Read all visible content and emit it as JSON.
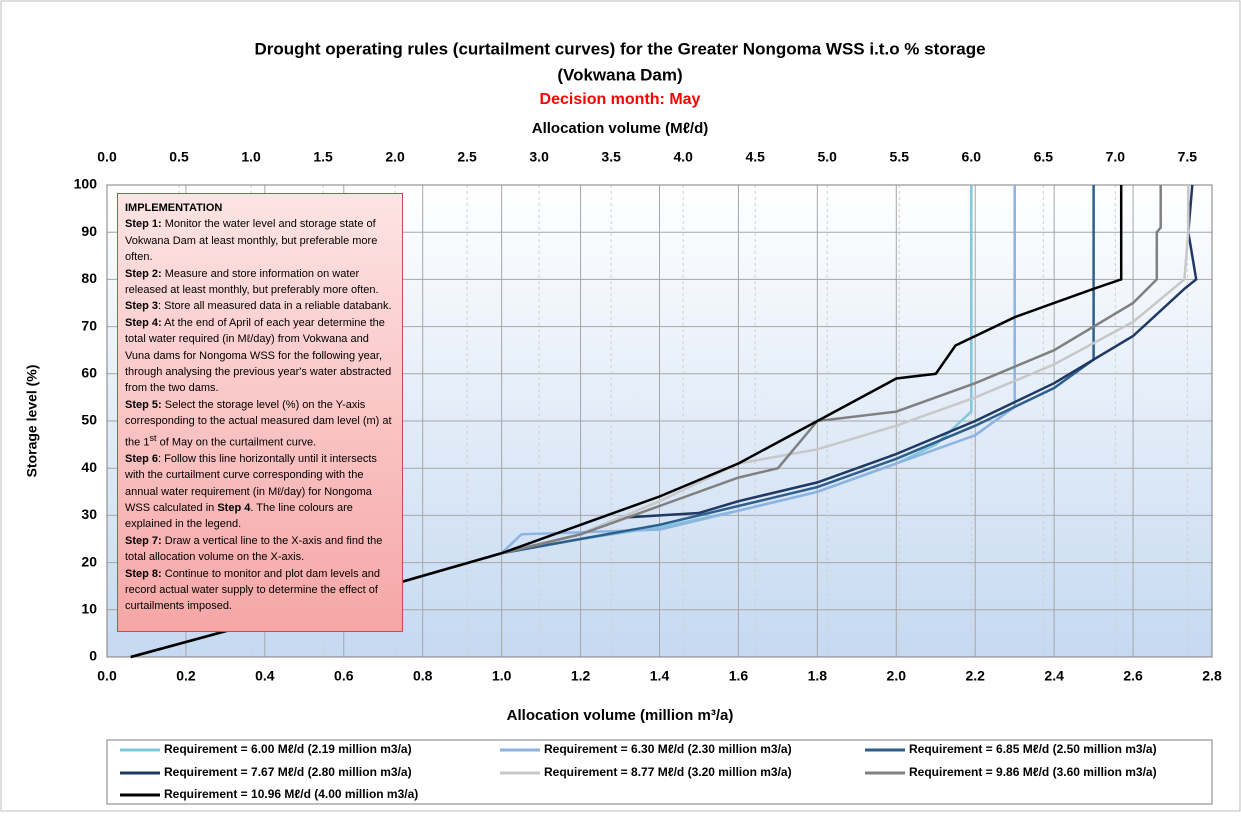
{
  "chart_data": {
    "type": "line",
    "title": "Drought operating rules (curtailment curves) for the Greater Nongoma WSS i.t.o % storage",
    "subtitle": "(Vokwana Dam)",
    "decision_month": "Decision month: May",
    "xlabel": "Allocation volume (million m³/a)",
    "x2label": "Allocation volume (Mℓ/d)",
    "ylabel": "Storage level (%)",
    "xlim": [
      0,
      2.8
    ],
    "xticks": [
      {
        "value": 0,
        "label": "0.0"
      },
      {
        "value": 0.2,
        "label": "0.2"
      },
      {
        "value": 0.4,
        "label": "0.4"
      },
      {
        "value": 0.6,
        "label": "0.6"
      },
      {
        "value": 0.8,
        "label": "0.8"
      },
      {
        "value": 1,
        "label": "1.0"
      },
      {
        "value": 1.2,
        "label": "1.2"
      },
      {
        "value": 1.4,
        "label": "1.4"
      },
      {
        "value": 1.6,
        "label": "1.6"
      },
      {
        "value": 1.8,
        "label": "1.8"
      },
      {
        "value": 2,
        "label": "2.0"
      },
      {
        "value": 2.2,
        "label": "2.2"
      },
      {
        "value": 2.4,
        "label": "2.4"
      },
      {
        "value": 2.6,
        "label": "2.6"
      },
      {
        "value": 2.8,
        "label": "2.8"
      }
    ],
    "x2lim": [
      0,
      7.671
    ],
    "x2ticks": [
      {
        "value": 0,
        "label": "0.0"
      },
      0.5,
      {
        "value": 1,
        "label": "1.0"
      },
      1.5,
      {
        "value": 2,
        "label": "2.0"
      },
      2.5,
      {
        "value": 3,
        "label": "3.0"
      },
      3.5,
      {
        "value": 4,
        "label": "4.0"
      },
      4.5,
      {
        "value": 5,
        "label": "5.0"
      },
      5.5,
      {
        "value": 6,
        "label": "6.0"
      },
      6.5,
      {
        "value": 7,
        "label": "7.0"
      },
      7.5
    ],
    "ylim": [
      0,
      100
    ],
    "yticks": [
      0,
      10,
      20,
      30,
      40,
      50,
      60,
      70,
      80,
      90,
      100
    ],
    "grid": true,
    "series": [
      {
        "name": "Requirement = 6.00 Mℓ/d (2.19 million m3/a)",
        "color": "#7fc8dc",
        "x": [
          0.06,
          0.5,
          1.0,
          1.2,
          1.4,
          1.6,
          1.8,
          2.0,
          2.1,
          2.19,
          2.19
        ],
        "values": [
          0,
          10,
          22,
          25,
          27.5,
          31,
          35,
          41,
          45,
          52,
          100
        ]
      },
      {
        "name": "Requirement = 6.30 Mℓ/d (2.30 million m3/a)",
        "color": "#8db3e2",
        "x": [
          0.06,
          0.5,
          1.0,
          1.05,
          1.4,
          1.6,
          1.8,
          2.0,
          2.2,
          2.3,
          2.3
        ],
        "values": [
          0,
          10,
          22,
          26,
          27,
          31,
          35,
          41,
          47,
          53,
          100
        ]
      },
      {
        "name": "Requirement = 6.85 Mℓ/d (2.50 million m3/a)",
        "color": "#2e5f8c",
        "x": [
          0.06,
          0.5,
          1.0,
          1.2,
          1.4,
          1.6,
          1.8,
          2.0,
          2.2,
          2.4,
          2.5,
          2.5
        ],
        "values": [
          0,
          10,
          22,
          25,
          28,
          32,
          36,
          42,
          49,
          57,
          63,
          100
        ]
      },
      {
        "name": "Requirement = 7.67 Mℓ/d (2.80 million m3/a)",
        "color": "#1f3864",
        "x": [
          0.06,
          0.5,
          1.0,
          1.2,
          1.3,
          1.5,
          1.6,
          1.8,
          2.0,
          2.2,
          2.4,
          2.6,
          2.73,
          2.76,
          2.74,
          2.75
        ],
        "values": [
          0,
          10,
          22,
          26,
          29.5,
          30.5,
          33,
          37,
          43,
          50,
          58,
          68,
          78,
          80,
          90,
          100
        ]
      },
      {
        "name": "Requirement = 8.77 Mℓ/d (3.20 million m3/a)",
        "color": "#c8c8c8",
        "x": [
          0.06,
          0.5,
          1.0,
          1.2,
          1.4,
          1.6,
          1.8,
          2.0,
          2.2,
          2.4,
          2.6,
          2.73,
          2.74,
          2.74
        ],
        "values": [
          0,
          10,
          22,
          26,
          33,
          41,
          44,
          49,
          55,
          62,
          71,
          80,
          90,
          100
        ]
      },
      {
        "name": "Requirement = 9.86 Mℓ/d (3.60 million m3/a)",
        "color": "#808080",
        "x": [
          0.06,
          0.5,
          1.0,
          1.2,
          1.4,
          1.6,
          1.7,
          1.8,
          2.0,
          2.2,
          2.4,
          2.6,
          2.66,
          2.66,
          2.67,
          2.67
        ],
        "values": [
          0,
          10,
          22,
          26,
          32,
          38,
          40,
          50,
          52,
          58,
          65,
          75,
          80,
          90,
          91,
          100
        ]
      },
      {
        "name": "Requirement = 10.96 Mℓ/d (4.00 million m3/a)",
        "color": "#000000",
        "x": [
          0.06,
          0.5,
          1.0,
          1.2,
          1.4,
          1.6,
          1.8,
          2.0,
          2.1,
          2.15,
          2.3,
          2.5,
          2.57,
          2.57
        ],
        "values": [
          0,
          10,
          22,
          28,
          34,
          41,
          50,
          59,
          60,
          66,
          72,
          78,
          80,
          100
        ]
      }
    ]
  },
  "text_box": {
    "title": "IMPLEMENTATION",
    "steps": [
      {
        "label": "Step 1:",
        "text": " Monitor the water level and storage state of Vokwana Dam at least monthly, but preferable more often."
      },
      {
        "label": "Step 2:",
        "text": " Measure and store information on water released at least monthly, but preferably more often."
      },
      {
        "label": "Step 3",
        "text": ": Store all measured data in a reliable databank."
      },
      {
        "label": "Step 4:",
        "text": " At the end of April of each year determine the total water required (in Mℓ/day) from Vokwana and Vuna dams for Nongoma WSS for the following year, through analysing the previous year's water abstracted  from the two dams."
      },
      {
        "label": "Step 5:",
        "text": " Select the storage level (%) on the Y-axis corresponding to the actual measured dam level (m) at the 1",
        "sup": "st",
        "text2": " of May on the curtailment curve."
      },
      {
        "label": "Step 6",
        "text": ": Follow this line horizontally until it intersects with the curtailment curve corresponding with the annual water requirement (in Mℓ/day) for Nongoma WSS calculated in ",
        "label2": "Step 4",
        "text2": ".  The line colours are explained in the legend."
      },
      {
        "label": "Step 7:",
        "text": " Draw a vertical line to the X-axis and find the total allocation volume on the X-axis."
      },
      {
        "label": "Step 8:",
        "text": " Continue to monitor and plot dam levels and record actual water supply to determine the effect of curtailments imposed."
      }
    ]
  }
}
